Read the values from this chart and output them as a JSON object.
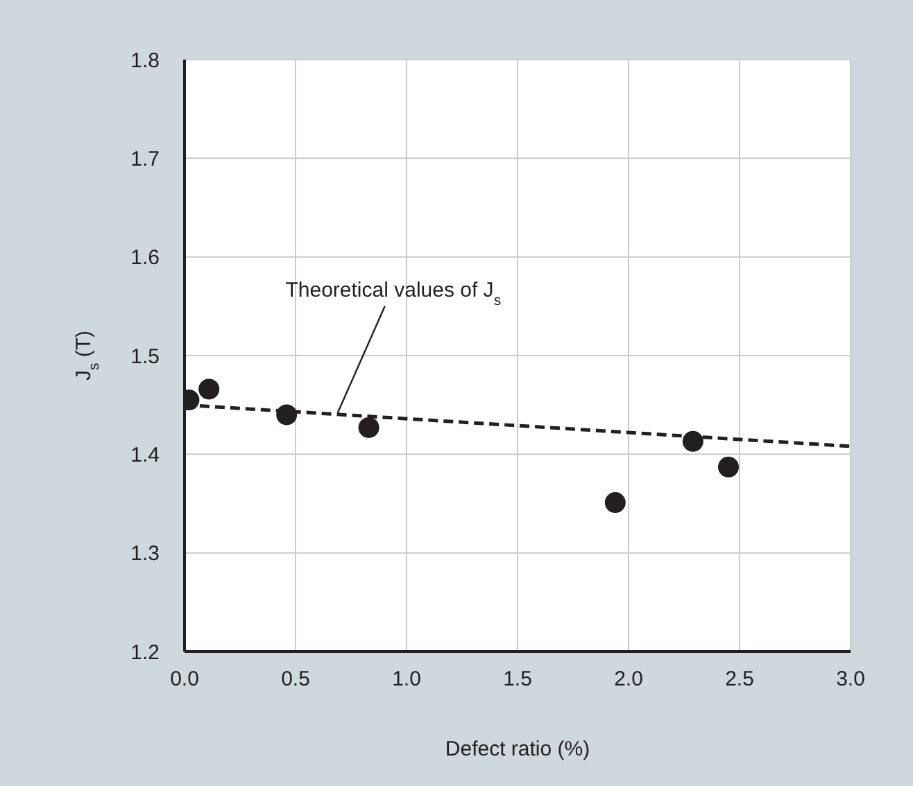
{
  "chart_data": {
    "type": "scatter",
    "xlabel": "Defect ratio (%)",
    "ylabel": "J$_{s}$ (T)",
    "series": [
      {
        "color": "#231f20",
        "x": [
          0.02,
          0.11,
          0.46,
          0.83,
          1.94,
          2.29,
          2.45
        ],
        "values": [
          1.455,
          1.466,
          1.44,
          1.427,
          1.351,
          1.413,
          1.387
        ]
      },
      {
        "type": "line",
        "color": "#231f20",
        "line_style": "dashed",
        "marker": "none",
        "x": [
          0,
          3.0
        ],
        "values": [
          1.45,
          1.408
        ]
      }
    ],
    "annotations": [
      {
        "text": "Theoretical values of J$_{s}$",
        "x": 0.69,
        "y": 1.442
      }
    ],
    "xlim": [
      0,
      3.0
    ],
    "xticks": [
      {
        "value": 0,
        "label": "0.0"
      },
      {
        "value": 0.5,
        "label": "0.5"
      },
      {
        "value": 1,
        "label": "1.0"
      },
      {
        "value": 1.5,
        "label": "1.5"
      },
      {
        "value": 2,
        "label": "2.0"
      },
      {
        "value": 2.5,
        "label": "2.5"
      },
      {
        "value": 3,
        "label": "3.0"
      }
    ],
    "ylim": [
      1.2,
      1.8
    ],
    "yticks": [
      1.2,
      1.3,
      1.4,
      1.5,
      1.6,
      1.7,
      1.8
    ],
    "grid": true,
    "marker": "circle",
    "legend": false
  }
}
